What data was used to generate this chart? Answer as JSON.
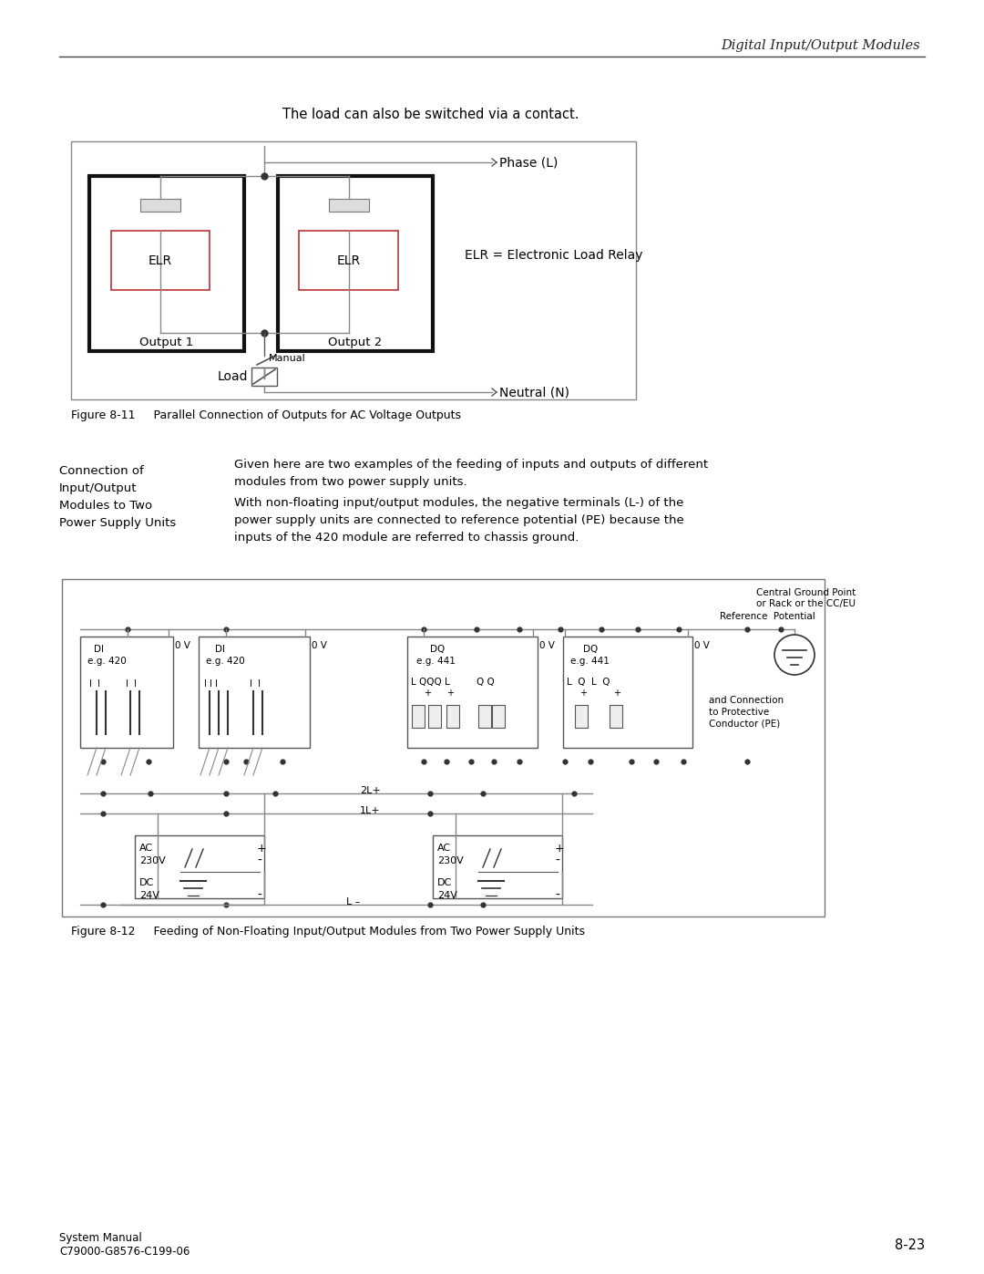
{
  "page_title": "Digital Input/Output Modules",
  "intro_text": "The load can also be switched via a contact.",
  "figure1_caption": "Figure 8-11     Parallel Connection of Outputs for AC Voltage Outputs",
  "figure2_caption": "Figure 8-12     Feeding of Non-Floating Input/Output Modules from Two Power Supply Units",
  "sidebar_heading": "Connection of\nInput/Output\nModules to Two\nPower Supply Units",
  "body_text1": "Given here are two examples of the feeding of inputs and outputs of different\nmodules from two power supply units.",
  "body_text2": "With non-floating input/output modules, the negative terminals (L-) of the\npower supply units are connected to reference potential (PE) because the\ninputs of the 420 module are referred to chassis ground.",
  "footer_left1": "System Manual",
  "footer_left2": "C79000-G8576-C199-06",
  "footer_right": "8-23",
  "bg_color": "#ffffff"
}
